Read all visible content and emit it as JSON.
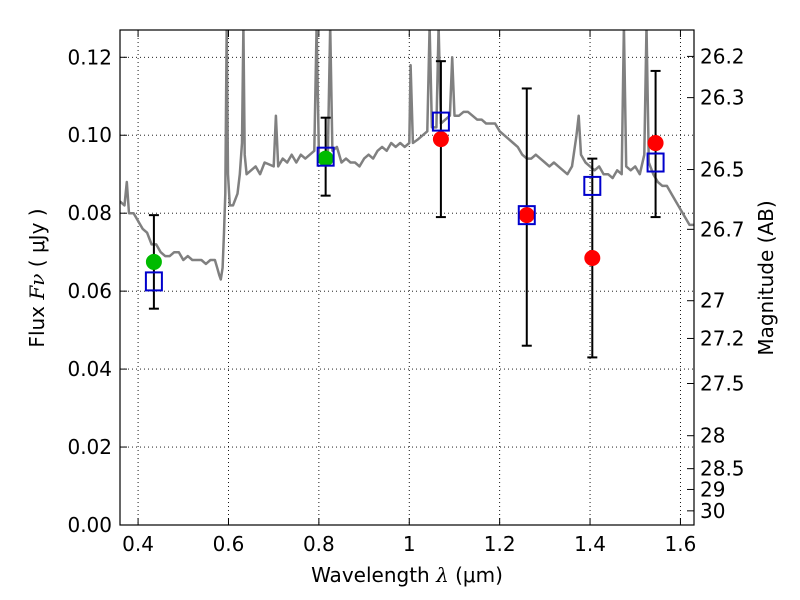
{
  "chart_data": {
    "type": "scatter",
    "xlabel": {
      "prefix": "Wavelength",
      "symbol": "λ",
      "unit": "(μm)"
    },
    "ylabel": {
      "prefix": "Flux",
      "symbol": "Fν",
      "unit": "( μJy )"
    },
    "y2label": "Magnitude (AB)",
    "xlim": [
      0.36,
      1.63
    ],
    "ylim": [
      0.0,
      0.127
    ],
    "xticks": [
      0.4,
      0.6,
      0.8,
      1.0,
      1.2,
      1.4,
      1.6
    ],
    "xtick_labels": [
      "0.4",
      "0.6",
      "0.8",
      "1",
      "1.2",
      "1.4",
      "1.6"
    ],
    "yticks": [
      0.0,
      0.02,
      0.04,
      0.06,
      0.08,
      0.1,
      0.12
    ],
    "ytick_labels": [
      "0.00",
      "0.02",
      "0.04",
      "0.06",
      "0.08",
      "0.10",
      "0.12"
    ],
    "right_axis": {
      "labels": [
        "26.2",
        "26.3",
        "26.5",
        "26.7",
        "27",
        "27.2",
        "27.5",
        "28",
        "28.5",
        "29",
        "30"
      ],
      "values": [
        26.2,
        26.3,
        26.5,
        26.7,
        27.0,
        27.2,
        27.5,
        28.0,
        28.5,
        29.0,
        30.0
      ]
    },
    "grid": true,
    "colors": {
      "spectrum": "#808080",
      "observed_optical": "#00bb00",
      "observed_ir": "#ff0000",
      "model": "#0000cc",
      "errorbar": "#000000"
    },
    "spectrum": [
      [
        0.36,
        0.083
      ],
      [
        0.37,
        0.082
      ],
      [
        0.375,
        0.088
      ],
      [
        0.38,
        0.08
      ],
      [
        0.39,
        0.08
      ],
      [
        0.4,
        0.078
      ],
      [
        0.41,
        0.076
      ],
      [
        0.42,
        0.075
      ],
      [
        0.43,
        0.072
      ],
      [
        0.44,
        0.072
      ],
      [
        0.45,
        0.07
      ],
      [
        0.46,
        0.069
      ],
      [
        0.47,
        0.069
      ],
      [
        0.48,
        0.07
      ],
      [
        0.49,
        0.07
      ],
      [
        0.5,
        0.068
      ],
      [
        0.51,
        0.069
      ],
      [
        0.52,
        0.068
      ],
      [
        0.53,
        0.068
      ],
      [
        0.54,
        0.068
      ],
      [
        0.55,
        0.067
      ],
      [
        0.56,
        0.068
      ],
      [
        0.57,
        0.068
      ],
      [
        0.575,
        0.066
      ],
      [
        0.58,
        0.064
      ],
      [
        0.583,
        0.063
      ],
      [
        0.587,
        0.066
      ],
      [
        0.59,
        0.075
      ],
      [
        0.593,
        0.085
      ],
      [
        0.596,
        0.128
      ],
      [
        0.599,
        0.09
      ],
      [
        0.603,
        0.082
      ],
      [
        0.61,
        0.082
      ],
      [
        0.62,
        0.085
      ],
      [
        0.625,
        0.09
      ],
      [
        0.63,
        0.098
      ],
      [
        0.633,
        0.128
      ],
      [
        0.636,
        0.095
      ],
      [
        0.64,
        0.09
      ],
      [
        0.66,
        0.092
      ],
      [
        0.67,
        0.09
      ],
      [
        0.68,
        0.093
      ],
      [
        0.7,
        0.092
      ],
      [
        0.705,
        0.105
      ],
      [
        0.71,
        0.092
      ],
      [
        0.72,
        0.094
      ],
      [
        0.73,
        0.093
      ],
      [
        0.74,
        0.095
      ],
      [
        0.75,
        0.093
      ],
      [
        0.76,
        0.095
      ],
      [
        0.77,
        0.094
      ],
      [
        0.78,
        0.095
      ],
      [
        0.79,
        0.096
      ],
      [
        0.795,
        0.128
      ],
      [
        0.8,
        0.095
      ],
      [
        0.81,
        0.095
      ],
      [
        0.82,
        0.096
      ],
      [
        0.825,
        0.128
      ],
      [
        0.83,
        0.096
      ],
      [
        0.84,
        0.097
      ],
      [
        0.85,
        0.093
      ],
      [
        0.86,
        0.094
      ],
      [
        0.87,
        0.093
      ],
      [
        0.88,
        0.093
      ],
      [
        0.89,
        0.092
      ],
      [
        0.9,
        0.094
      ],
      [
        0.91,
        0.095
      ],
      [
        0.92,
        0.094
      ],
      [
        0.93,
        0.096
      ],
      [
        0.94,
        0.097
      ],
      [
        0.95,
        0.096
      ],
      [
        0.96,
        0.098
      ],
      [
        0.97,
        0.097
      ],
      [
        0.98,
        0.098
      ],
      [
        0.99,
        0.097
      ],
      [
        1.0,
        0.098
      ],
      [
        1.003,
        0.118
      ],
      [
        1.008,
        0.098
      ],
      [
        1.02,
        0.099
      ],
      [
        1.03,
        0.1
      ],
      [
        1.04,
        0.101
      ],
      [
        1.045,
        0.128
      ],
      [
        1.05,
        0.102
      ],
      [
        1.06,
        0.102
      ],
      [
        1.065,
        0.128
      ],
      [
        1.07,
        0.103
      ],
      [
        1.08,
        0.104
      ],
      [
        1.09,
        0.105
      ],
      [
        1.095,
        0.12
      ],
      [
        1.1,
        0.105
      ],
      [
        1.11,
        0.105
      ],
      [
        1.12,
        0.106
      ],
      [
        1.13,
        0.106
      ],
      [
        1.14,
        0.105
      ],
      [
        1.15,
        0.104
      ],
      [
        1.16,
        0.104
      ],
      [
        1.17,
        0.103
      ],
      [
        1.18,
        0.103
      ],
      [
        1.19,
        0.103
      ],
      [
        1.2,
        0.101
      ],
      [
        1.21,
        0.1
      ],
      [
        1.22,
        0.099
      ],
      [
        1.23,
        0.098
      ],
      [
        1.24,
        0.097
      ],
      [
        1.25,
        0.095
      ],
      [
        1.26,
        0.094
      ],
      [
        1.27,
        0.094
      ],
      [
        1.28,
        0.095
      ],
      [
        1.29,
        0.094
      ],
      [
        1.3,
        0.093
      ],
      [
        1.31,
        0.092
      ],
      [
        1.32,
        0.093
      ],
      [
        1.33,
        0.092
      ],
      [
        1.34,
        0.091
      ],
      [
        1.35,
        0.09
      ],
      [
        1.36,
        0.092
      ],
      [
        1.37,
        0.1
      ],
      [
        1.375,
        0.105
      ],
      [
        1.38,
        0.095
      ],
      [
        1.39,
        0.093
      ],
      [
        1.4,
        0.092
      ],
      [
        1.41,
        0.091
      ],
      [
        1.42,
        0.092
      ],
      [
        1.43,
        0.09
      ],
      [
        1.44,
        0.09
      ],
      [
        1.45,
        0.089
      ],
      [
        1.46,
        0.091
      ],
      [
        1.47,
        0.09
      ],
      [
        1.475,
        0.128
      ],
      [
        1.48,
        0.092
      ],
      [
        1.49,
        0.091
      ],
      [
        1.5,
        0.092
      ],
      [
        1.51,
        0.09
      ],
      [
        1.52,
        0.095
      ],
      [
        1.525,
        0.128
      ],
      [
        1.53,
        0.093
      ],
      [
        1.54,
        0.09
      ],
      [
        1.55,
        0.088
      ],
      [
        1.56,
        0.087
      ],
      [
        1.57,
        0.087
      ],
      [
        1.58,
        0.085
      ],
      [
        1.59,
        0.083
      ],
      [
        1.6,
        0.081
      ],
      [
        1.61,
        0.079
      ],
      [
        1.62,
        0.077
      ],
      [
        1.63,
        0.077
      ]
    ],
    "observed": [
      {
        "x": 0.435,
        "y": 0.0675,
        "color": "green"
      },
      {
        "x": 0.815,
        "y": 0.094,
        "color": "green"
      },
      {
        "x": 1.07,
        "y": 0.099,
        "color": "red"
      },
      {
        "x": 1.26,
        "y": 0.0795,
        "color": "red"
      },
      {
        "x": 1.405,
        "y": 0.0685,
        "color": "red"
      },
      {
        "x": 1.545,
        "y": 0.098,
        "color": "red"
      }
    ],
    "model": [
      {
        "x": 0.435,
        "y": 0.0625,
        "err_low": 0.0555,
        "err_high": 0.0795
      },
      {
        "x": 0.815,
        "y": 0.0945,
        "err_low": 0.0845,
        "err_high": 0.1045
      },
      {
        "x": 1.07,
        "y": 0.1035,
        "err_low": 0.079,
        "err_high": 0.119
      },
      {
        "x": 1.26,
        "y": 0.0795,
        "err_low": 0.046,
        "err_high": 0.112
      },
      {
        "x": 1.405,
        "y": 0.087,
        "err_low": 0.043,
        "err_high": 0.094
      },
      {
        "x": 1.545,
        "y": 0.093,
        "err_low": 0.079,
        "err_high": 0.1165
      }
    ]
  }
}
